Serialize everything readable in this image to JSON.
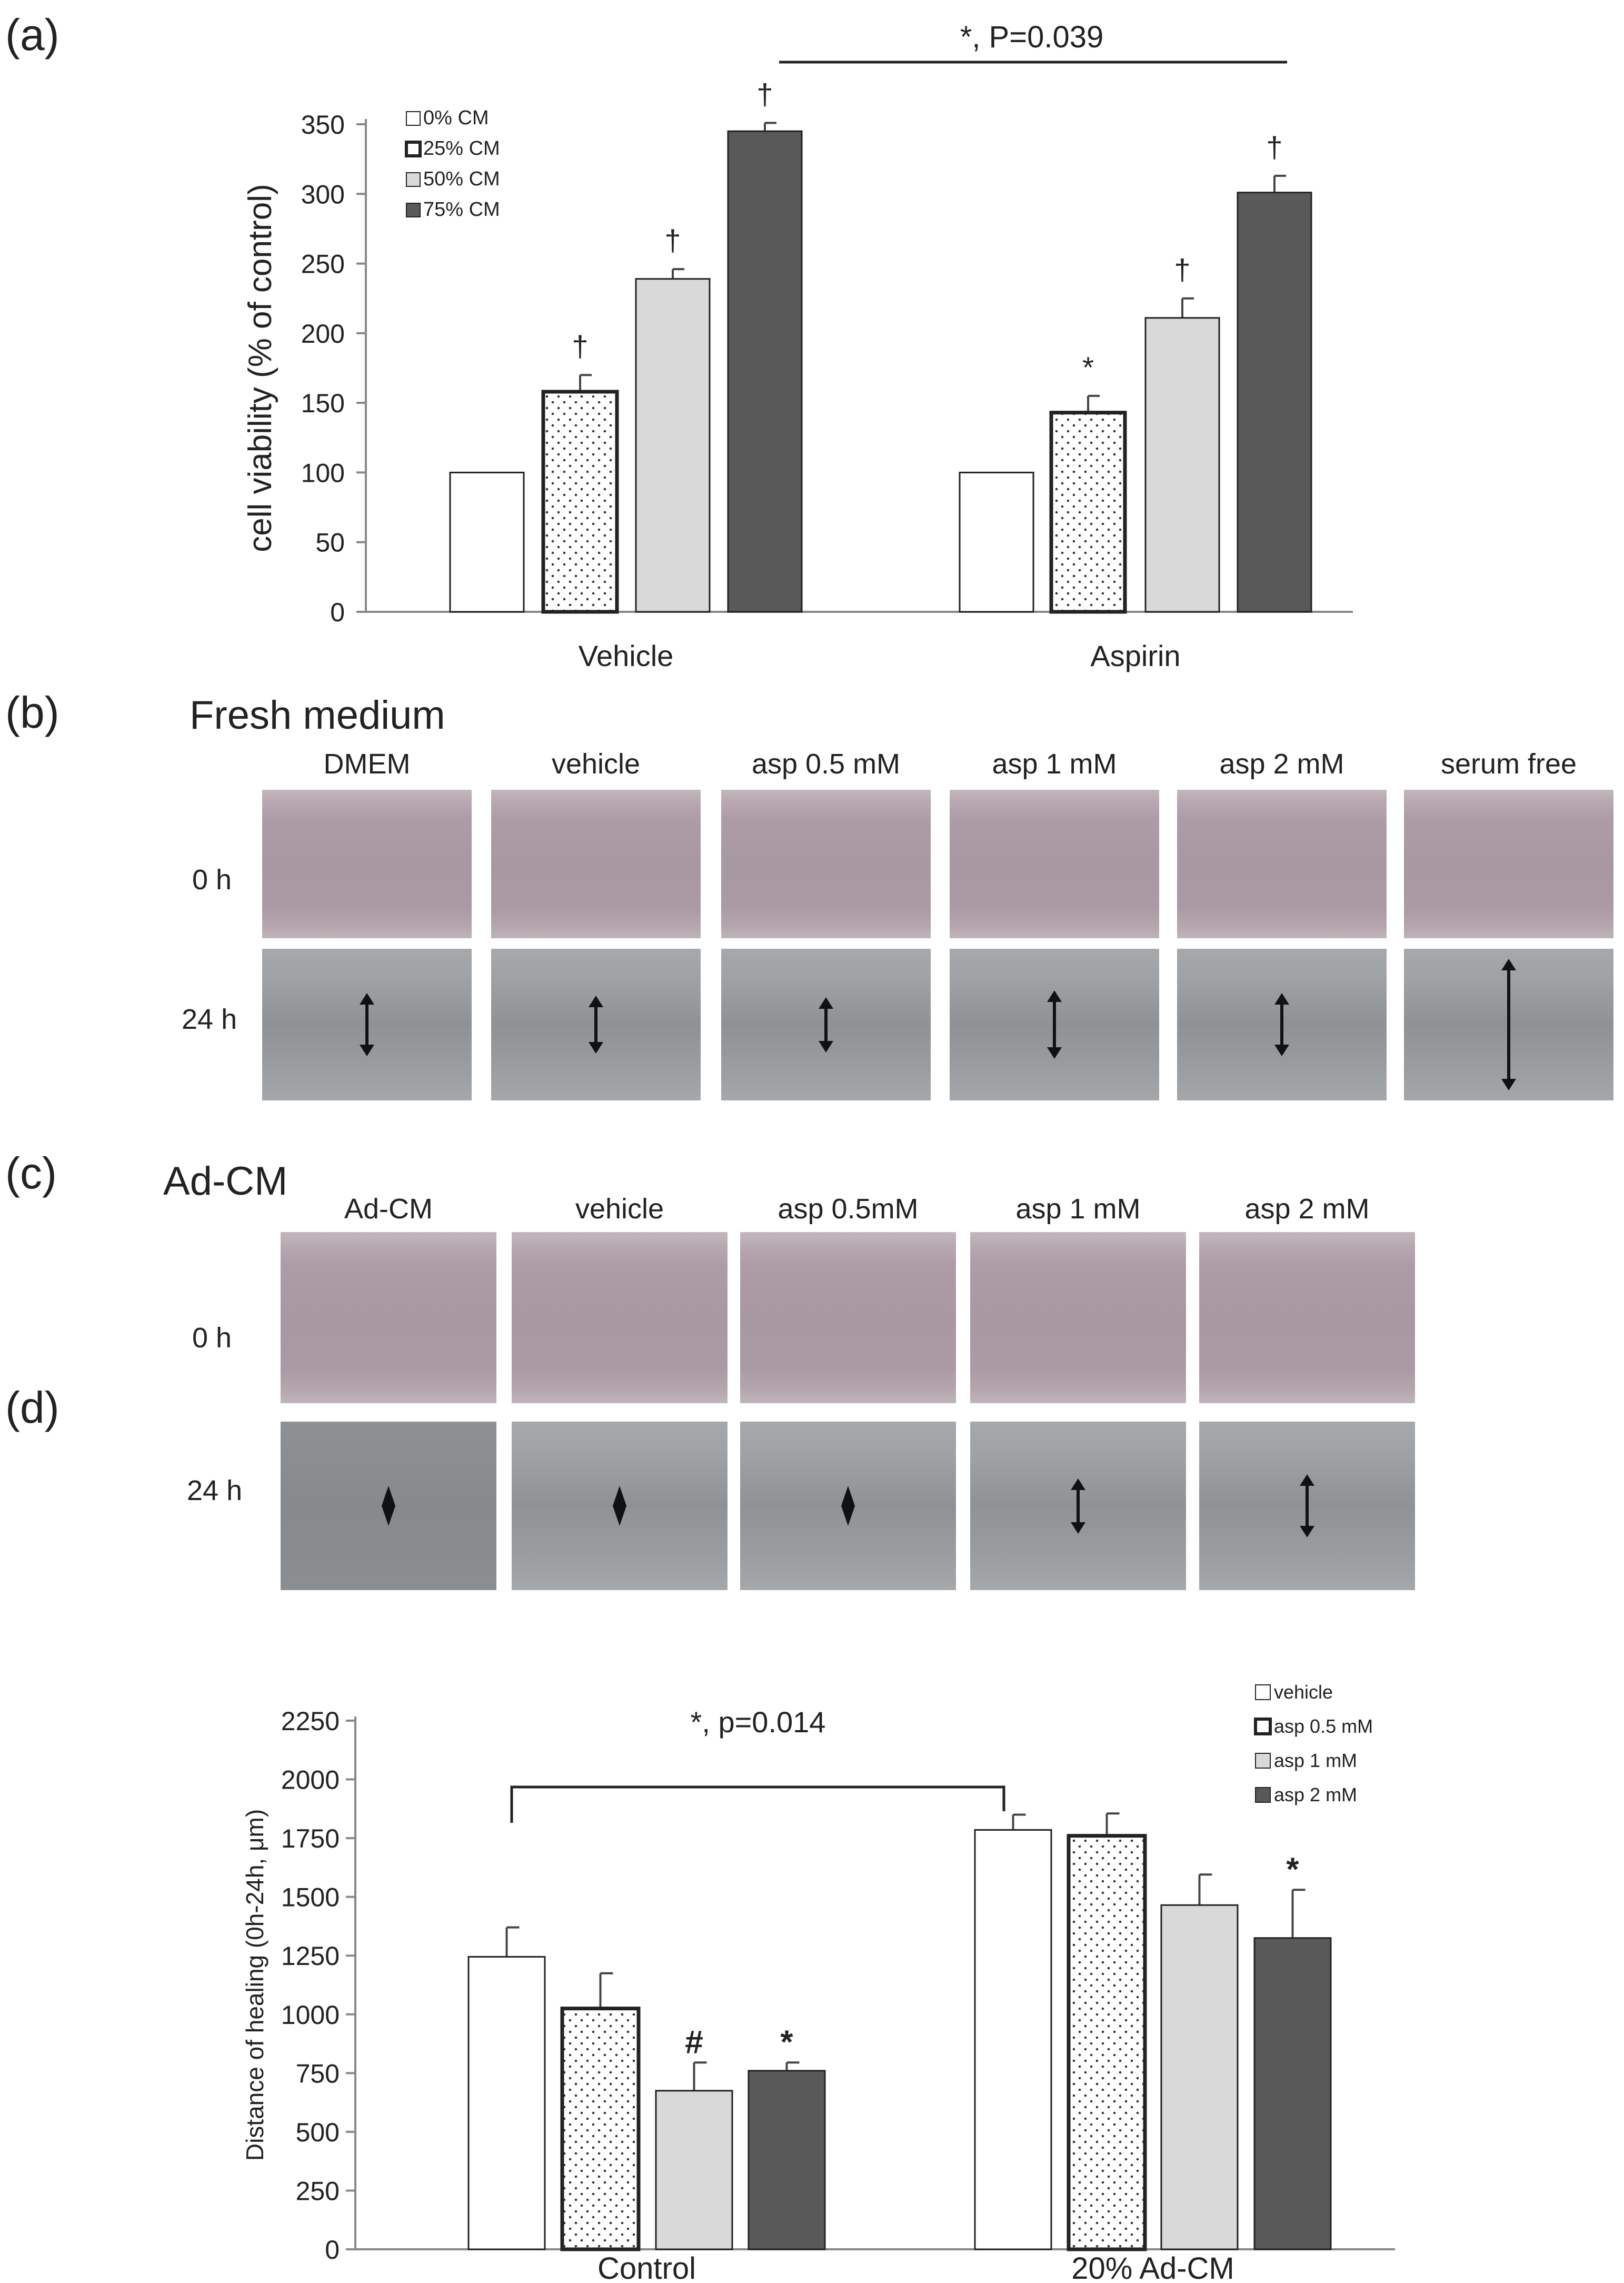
{
  "panels": {
    "a": "(a)",
    "b": "(b)",
    "c": "(c)",
    "d": "(d)"
  },
  "chart_data": [
    {
      "type": "bar",
      "panel": "(a)",
      "ylabel": "cell viability  (% of control)",
      "xlabel": "",
      "ylim": [
        0,
        350
      ],
      "yticks": [
        "0",
        "50",
        "100",
        "150",
        "200",
        "250",
        "300",
        "350"
      ],
      "categories": [
        "Vehicle",
        "Aspirin"
      ],
      "series": [
        {
          "name": "0% CM",
          "values": [
            100,
            100
          ],
          "errors": [
            0,
            0
          ],
          "marks": [
            "",
            ""
          ]
        },
        {
          "name": "25% CM",
          "values": [
            158,
            143
          ],
          "errors": [
            12,
            12
          ],
          "marks": [
            "†",
            "*"
          ]
        },
        {
          "name": "50% CM",
          "values": [
            239,
            211
          ],
          "errors": [
            7,
            14
          ],
          "marks": [
            "†",
            "†"
          ]
        },
        {
          "name": "75% CM",
          "values": [
            345,
            301
          ],
          "errors": [
            6,
            12
          ],
          "marks": [
            "†",
            "†"
          ]
        }
      ],
      "annotation": "*, P=0.039",
      "legend_position": "top-left"
    },
    {
      "type": "bar",
      "panel": "(d)",
      "ylabel": "Distance of healing (0h-24h, μm)",
      "xlabel": "",
      "ylim": [
        0,
        2250
      ],
      "yticks": [
        "0",
        "250",
        "500",
        "750",
        "1000",
        "1250",
        "1500",
        "1750",
        "2000",
        "2250"
      ],
      "categories": [
        "Control",
        "20% Ad-CM"
      ],
      "series": [
        {
          "name": "vehicle",
          "values": [
            1245,
            1785
          ],
          "errors": [
            125,
            65
          ],
          "marks": [
            "",
            ""
          ]
        },
        {
          "name": "asp 0.5 mM",
          "values": [
            1025,
            1760
          ],
          "errors": [
            150,
            95
          ],
          "marks": [
            "",
            ""
          ]
        },
        {
          "name": "asp 1 mM",
          "values": [
            675,
            1465
          ],
          "errors": [
            120,
            130
          ],
          "marks": [
            "#",
            ""
          ]
        },
        {
          "name": "asp 2 mM",
          "values": [
            760,
            1325
          ],
          "errors": [
            35,
            205
          ],
          "marks": [
            "*",
            "*"
          ]
        }
      ],
      "annotation": "*, p=0.014",
      "legend_position": "top-right"
    }
  ],
  "panel_b": {
    "title": "Fresh medium",
    "columns": [
      "DMEM",
      "vehicle",
      "asp 0.5 mM",
      "asp 1 mM",
      "asp 2 mM",
      "serum free"
    ],
    "rows": [
      "0 h",
      "24 h"
    ]
  },
  "panel_c": {
    "title": "Ad-CM",
    "columns": [
      "Ad-CM",
      "vehicle",
      "asp 0.5mM",
      "asp 1 mM",
      "asp 2 mM"
    ],
    "rows": [
      "0 h",
      "24 h"
    ]
  },
  "colors": {
    "bar_white": "#ffffff",
    "bar_light": "#d9d9d9",
    "bar_dark": "#595959",
    "axis": "#888888"
  }
}
